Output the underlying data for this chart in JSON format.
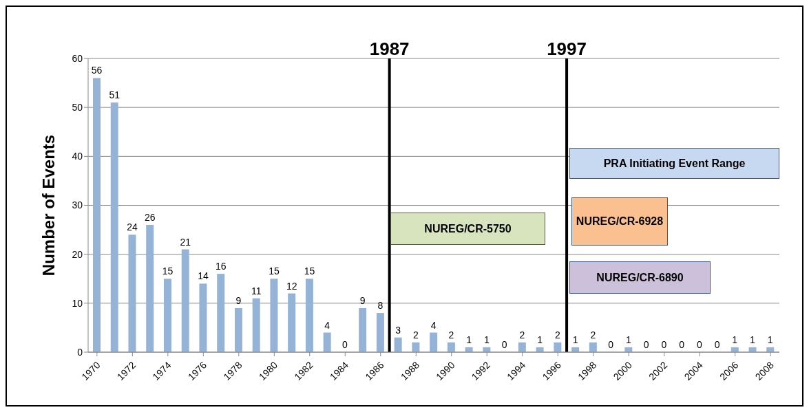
{
  "chart_data": {
    "type": "bar",
    "ylabel": "Number of Events",
    "x": [
      1970,
      1971,
      1972,
      1973,
      1974,
      1975,
      1976,
      1977,
      1978,
      1979,
      1980,
      1981,
      1982,
      1983,
      1984,
      1985,
      1986,
      1987,
      1988,
      1989,
      1990,
      1991,
      1992,
      1993,
      1994,
      1995,
      1996,
      1997,
      1998,
      1999,
      2000,
      2001,
      2002,
      2003,
      2004,
      2005,
      2006,
      2007,
      2008
    ],
    "values": [
      56,
      51,
      24,
      26,
      15,
      21,
      14,
      16,
      9,
      11,
      15,
      12,
      15,
      4,
      0,
      9,
      8,
      3,
      2,
      4,
      2,
      1,
      1,
      0,
      2,
      1,
      2,
      1,
      2,
      0,
      1,
      0,
      0,
      0,
      0,
      0,
      1,
      1,
      1
    ],
    "color": "#95b3d7",
    "data_labels": true,
    "xlim": [
      1969.5,
      2008.5
    ],
    "xticks": [
      1970,
      1972,
      1974,
      1976,
      1978,
      1980,
      1982,
      1984,
      1986,
      1988,
      1990,
      1992,
      1994,
      1996,
      1998,
      2000,
      2002,
      2004,
      2006,
      2008
    ],
    "ylim": [
      0,
      60
    ],
    "yticks": [
      0,
      10,
      20,
      30,
      40,
      50,
      60
    ],
    "grid": "y",
    "ref_lines": [
      {
        "axis": "x",
        "value": 1986.5,
        "label": "1987",
        "color": "#000000"
      },
      {
        "axis": "x",
        "value": 1996.5,
        "label": "1997",
        "color": "#000000"
      }
    ],
    "annotations": [
      "PRA Initiating Event Range",
      "NUREG/CR-5750",
      "NUREG/CR-6928",
      "NUREG/CR-6890"
    ]
  }
}
